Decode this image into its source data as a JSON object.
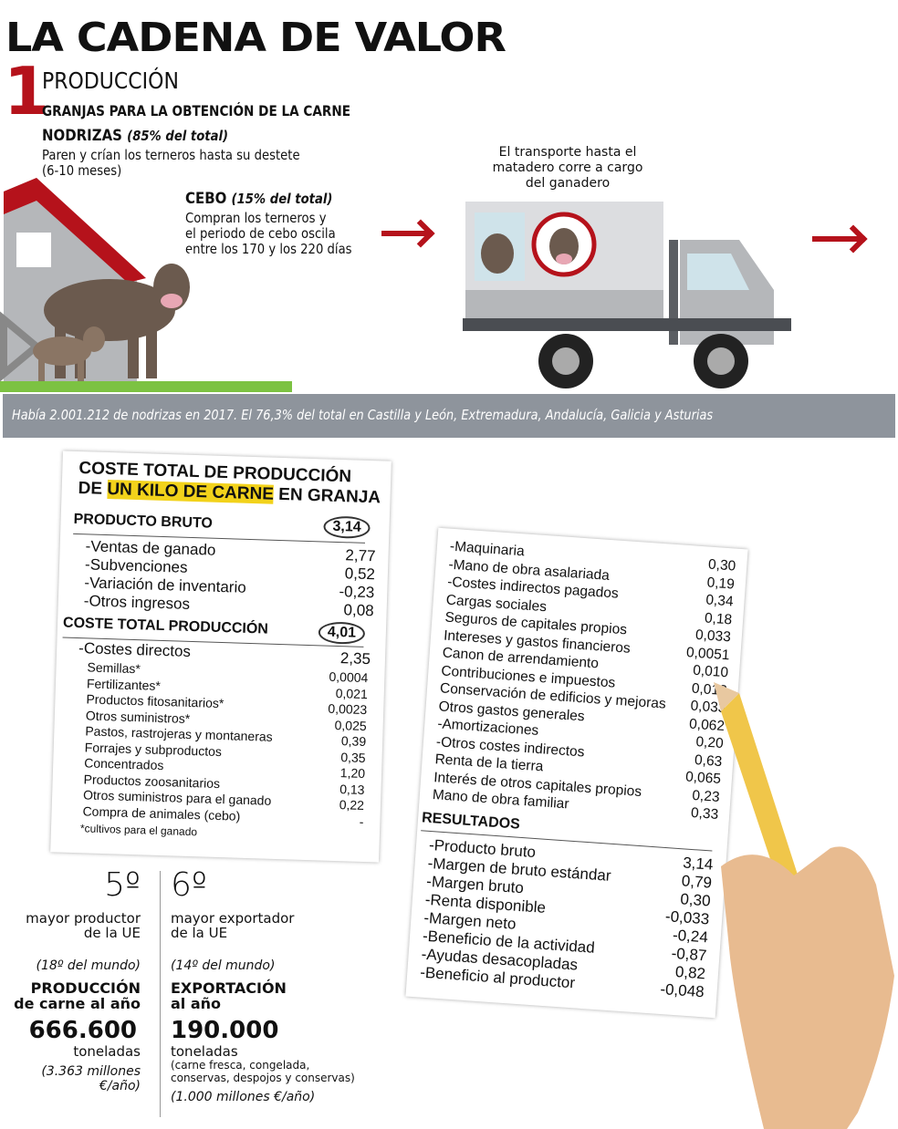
{
  "title": "LA CADENA DE VALOR",
  "section": {
    "number": "1",
    "name": "PRODUCCIÓN",
    "subtitle": "GRANJAS PARA LA OBTENCIÓN DE LA CARNE"
  },
  "nodrizas": {
    "title": "NODRIZAS",
    "share": "(85% del total)",
    "text": "Paren y crían los terneros hasta su destete\n(6-10 meses)"
  },
  "cebo": {
    "title": "CEBO",
    "share": "(15% del total)",
    "text": "Compran los terneros y\nel periodo de cebo oscila\nentre los 170 y los 220 días"
  },
  "transport": {
    "text": "El transporte hasta el\nmatadero corre a cargo\ndel ganadero"
  },
  "band": "Había 2.001.212 de nodrizas en 2017. El 76,3% del total en Castilla y León, Extremadura, Andalucía, Galicia y Asturias",
  "cost_table": {
    "title_line1": "COSTE TOTAL DE PRODUCCIÓN",
    "title_de": "DE",
    "title_highlight": "UN KILO DE CARNE",
    "title_end": "EN GRANJA",
    "highlight_color": "#f2d21b",
    "producto_bruto": {
      "label": "PRODUCTO BRUTO",
      "value": "3,14",
      "items": [
        "-Ventas de ganado",
        "-Subvenciones",
        "-Variación de inventario",
        "-Otros ingresos"
      ],
      "values": [
        "2,77",
        "0,52",
        "-0,23",
        "0,08"
      ]
    },
    "coste_total": {
      "label": "COSTE TOTAL PRODUCCIÓN",
      "value": "4,01",
      "directos_label": "-Costes directos",
      "directos_value": "2,35",
      "items": [
        "Semillas*",
        "Fertilizantes*",
        "Productos fitosanitarios*",
        "Otros suministros*",
        "Pastos, rastrojeras y montaneras",
        "Forrajes y subproductos",
        "Concentrados",
        "Productos zoosanitarios",
        "Otros suministros para el ganado",
        "Compra de animales (cebo)"
      ],
      "values": [
        "0,0004",
        "0,021",
        "0,0023",
        "0,025",
        "0,39",
        "0,35",
        "1,20",
        "0,13",
        "0,22",
        "-"
      ],
      "footnote": "*cultivos para el ganado"
    },
    "continued": {
      "items": [
        "-Maquinaria",
        "-Mano de obra asalariada",
        "-Costes indirectos pagados",
        "Cargas sociales",
        "Seguros de capitales propios",
        "Intereses y gastos financieros",
        "Canon de arrendamiento",
        "Contribuciones e impuestos",
        "Conservación de edificios y mejoras",
        "Otros gastos generales",
        "-Amortizaciones",
        "-Otros costes indirectos",
        "Renta de la tierra",
        "Interés de otros capitales propios",
        "Mano de obra familiar"
      ],
      "values": [
        "0,30",
        "0,19",
        "0,34",
        "0,18",
        "0,033",
        "0,0051",
        "0,010",
        "0,013",
        "0,033",
        "0,062",
        "0,20",
        "0,63",
        "0,065",
        "0,23",
        "0,33"
      ]
    },
    "resultados": {
      "label": "RESULTADOS",
      "items": [
        "-Producto bruto",
        "-Margen de bruto estándar",
        "-Margen bruto",
        "-Renta disponible",
        "-Margen neto",
        "-Beneficio de la actividad",
        "-Ayudas desacopladas",
        "-Beneficio al productor"
      ],
      "values": [
        "3,14",
        "0,79",
        "0,30",
        "-0,033",
        "-0,24",
        "-0,87",
        "0,82",
        "-0,048"
      ]
    }
  },
  "stats": [
    {
      "rank": "5º",
      "desc": "mayor productor\nde la UE",
      "world": "(18º del mundo)",
      "kind": "PRODUCCIÓN\nde carne al año",
      "amount": "666.600",
      "unit": "toneladas",
      "note": "",
      "money": "(3.363 millones\n€/año)"
    },
    {
      "rank": "6º",
      "desc": "mayor exportador\nde la UE",
      "world": "(14º del mundo)",
      "kind": "EXPORTACIÓN\nal año",
      "amount": "190.000",
      "unit": "toneladas",
      "note": "(carne fresca, congelada,\nconservas, despojos y conservas)",
      "money": "(1.000 millones €/año)"
    }
  ],
  "colors": {
    "accent": "#b5121b",
    "band": "#8e949c",
    "cow": "#6b5a4e",
    "grass": "#7cc242"
  }
}
